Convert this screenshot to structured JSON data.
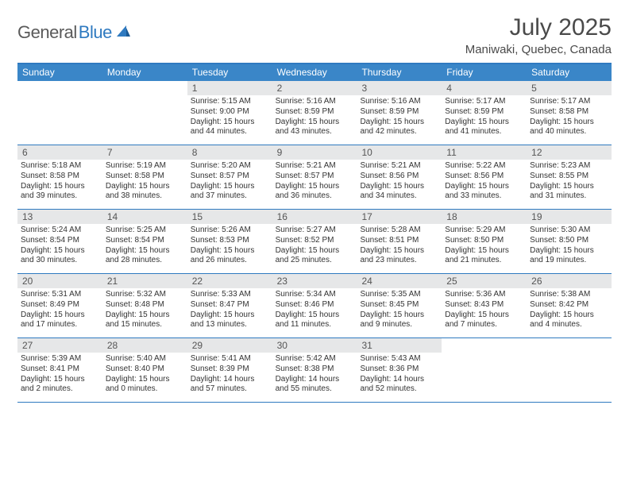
{
  "logo": {
    "text1": "General",
    "text2": "Blue"
  },
  "title": "July 2025",
  "location": "Maniwaki, Quebec, Canada",
  "colors": {
    "header_bg": "#3a86c8",
    "header_text": "#ffffff",
    "rule": "#2f7ac0",
    "daynum_bg": "#e6e7e8",
    "text": "#333333"
  },
  "weekdays": [
    "Sunday",
    "Monday",
    "Tuesday",
    "Wednesday",
    "Thursday",
    "Friday",
    "Saturday"
  ],
  "weeks": [
    [
      {
        "day": "",
        "sunrise": "",
        "sunset": "",
        "daylight": ""
      },
      {
        "day": "",
        "sunrise": "",
        "sunset": "",
        "daylight": ""
      },
      {
        "day": "1",
        "sunrise": "Sunrise: 5:15 AM",
        "sunset": "Sunset: 9:00 PM",
        "daylight": "Daylight: 15 hours and 44 minutes."
      },
      {
        "day": "2",
        "sunrise": "Sunrise: 5:16 AM",
        "sunset": "Sunset: 8:59 PM",
        "daylight": "Daylight: 15 hours and 43 minutes."
      },
      {
        "day": "3",
        "sunrise": "Sunrise: 5:16 AM",
        "sunset": "Sunset: 8:59 PM",
        "daylight": "Daylight: 15 hours and 42 minutes."
      },
      {
        "day": "4",
        "sunrise": "Sunrise: 5:17 AM",
        "sunset": "Sunset: 8:59 PM",
        "daylight": "Daylight: 15 hours and 41 minutes."
      },
      {
        "day": "5",
        "sunrise": "Sunrise: 5:17 AM",
        "sunset": "Sunset: 8:58 PM",
        "daylight": "Daylight: 15 hours and 40 minutes."
      }
    ],
    [
      {
        "day": "6",
        "sunrise": "Sunrise: 5:18 AM",
        "sunset": "Sunset: 8:58 PM",
        "daylight": "Daylight: 15 hours and 39 minutes."
      },
      {
        "day": "7",
        "sunrise": "Sunrise: 5:19 AM",
        "sunset": "Sunset: 8:58 PM",
        "daylight": "Daylight: 15 hours and 38 minutes."
      },
      {
        "day": "8",
        "sunrise": "Sunrise: 5:20 AM",
        "sunset": "Sunset: 8:57 PM",
        "daylight": "Daylight: 15 hours and 37 minutes."
      },
      {
        "day": "9",
        "sunrise": "Sunrise: 5:21 AM",
        "sunset": "Sunset: 8:57 PM",
        "daylight": "Daylight: 15 hours and 36 minutes."
      },
      {
        "day": "10",
        "sunrise": "Sunrise: 5:21 AM",
        "sunset": "Sunset: 8:56 PM",
        "daylight": "Daylight: 15 hours and 34 minutes."
      },
      {
        "day": "11",
        "sunrise": "Sunrise: 5:22 AM",
        "sunset": "Sunset: 8:56 PM",
        "daylight": "Daylight: 15 hours and 33 minutes."
      },
      {
        "day": "12",
        "sunrise": "Sunrise: 5:23 AM",
        "sunset": "Sunset: 8:55 PM",
        "daylight": "Daylight: 15 hours and 31 minutes."
      }
    ],
    [
      {
        "day": "13",
        "sunrise": "Sunrise: 5:24 AM",
        "sunset": "Sunset: 8:54 PM",
        "daylight": "Daylight: 15 hours and 30 minutes."
      },
      {
        "day": "14",
        "sunrise": "Sunrise: 5:25 AM",
        "sunset": "Sunset: 8:54 PM",
        "daylight": "Daylight: 15 hours and 28 minutes."
      },
      {
        "day": "15",
        "sunrise": "Sunrise: 5:26 AM",
        "sunset": "Sunset: 8:53 PM",
        "daylight": "Daylight: 15 hours and 26 minutes."
      },
      {
        "day": "16",
        "sunrise": "Sunrise: 5:27 AM",
        "sunset": "Sunset: 8:52 PM",
        "daylight": "Daylight: 15 hours and 25 minutes."
      },
      {
        "day": "17",
        "sunrise": "Sunrise: 5:28 AM",
        "sunset": "Sunset: 8:51 PM",
        "daylight": "Daylight: 15 hours and 23 minutes."
      },
      {
        "day": "18",
        "sunrise": "Sunrise: 5:29 AM",
        "sunset": "Sunset: 8:50 PM",
        "daylight": "Daylight: 15 hours and 21 minutes."
      },
      {
        "day": "19",
        "sunrise": "Sunrise: 5:30 AM",
        "sunset": "Sunset: 8:50 PM",
        "daylight": "Daylight: 15 hours and 19 minutes."
      }
    ],
    [
      {
        "day": "20",
        "sunrise": "Sunrise: 5:31 AM",
        "sunset": "Sunset: 8:49 PM",
        "daylight": "Daylight: 15 hours and 17 minutes."
      },
      {
        "day": "21",
        "sunrise": "Sunrise: 5:32 AM",
        "sunset": "Sunset: 8:48 PM",
        "daylight": "Daylight: 15 hours and 15 minutes."
      },
      {
        "day": "22",
        "sunrise": "Sunrise: 5:33 AM",
        "sunset": "Sunset: 8:47 PM",
        "daylight": "Daylight: 15 hours and 13 minutes."
      },
      {
        "day": "23",
        "sunrise": "Sunrise: 5:34 AM",
        "sunset": "Sunset: 8:46 PM",
        "daylight": "Daylight: 15 hours and 11 minutes."
      },
      {
        "day": "24",
        "sunrise": "Sunrise: 5:35 AM",
        "sunset": "Sunset: 8:45 PM",
        "daylight": "Daylight: 15 hours and 9 minutes."
      },
      {
        "day": "25",
        "sunrise": "Sunrise: 5:36 AM",
        "sunset": "Sunset: 8:43 PM",
        "daylight": "Daylight: 15 hours and 7 minutes."
      },
      {
        "day": "26",
        "sunrise": "Sunrise: 5:38 AM",
        "sunset": "Sunset: 8:42 PM",
        "daylight": "Daylight: 15 hours and 4 minutes."
      }
    ],
    [
      {
        "day": "27",
        "sunrise": "Sunrise: 5:39 AM",
        "sunset": "Sunset: 8:41 PM",
        "daylight": "Daylight: 15 hours and 2 minutes."
      },
      {
        "day": "28",
        "sunrise": "Sunrise: 5:40 AM",
        "sunset": "Sunset: 8:40 PM",
        "daylight": "Daylight: 15 hours and 0 minutes."
      },
      {
        "day": "29",
        "sunrise": "Sunrise: 5:41 AM",
        "sunset": "Sunset: 8:39 PM",
        "daylight": "Daylight: 14 hours and 57 minutes."
      },
      {
        "day": "30",
        "sunrise": "Sunrise: 5:42 AM",
        "sunset": "Sunset: 8:38 PM",
        "daylight": "Daylight: 14 hours and 55 minutes."
      },
      {
        "day": "31",
        "sunrise": "Sunrise: 5:43 AM",
        "sunset": "Sunset: 8:36 PM",
        "daylight": "Daylight: 14 hours and 52 minutes."
      },
      {
        "day": "",
        "sunrise": "",
        "sunset": "",
        "daylight": ""
      },
      {
        "day": "",
        "sunrise": "",
        "sunset": "",
        "daylight": ""
      }
    ]
  ]
}
